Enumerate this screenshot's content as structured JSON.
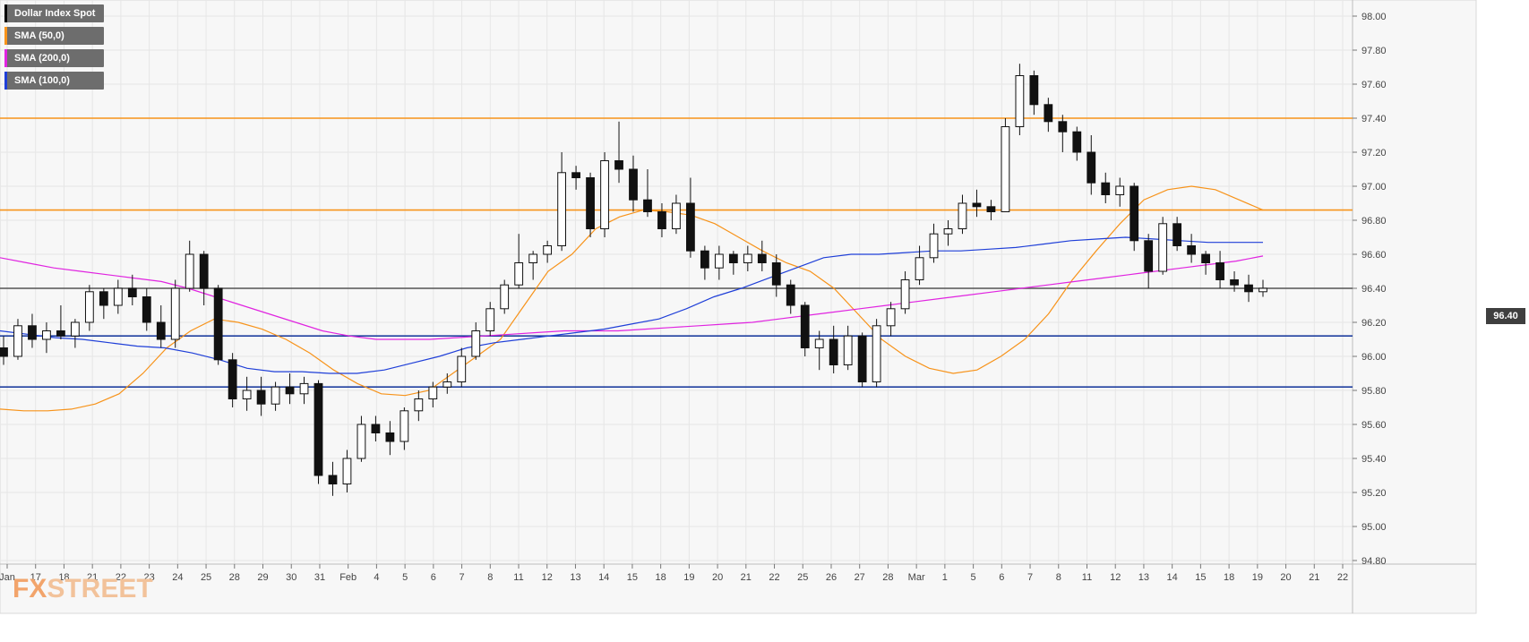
{
  "chart_data": {
    "type": "candlestick",
    "title": "Dollar Index Spot",
    "instrument": "Dollar Index Spot",
    "last_price_label": "96.40",
    "yaxis": {
      "min": 94.8,
      "max": 98.0,
      "ticks": [
        "98.00",
        "97.80",
        "97.60",
        "97.40",
        "97.20",
        "97.00",
        "96.80",
        "96.60",
        "96.40",
        "96.20",
        "96.00",
        "95.80",
        "95.60",
        "95.40",
        "95.20",
        "95.00",
        "94.80"
      ]
    },
    "xaxis": {
      "ticks": [
        "Jan",
        "17",
        "18",
        "21",
        "22",
        "23",
        "24",
        "25",
        "28",
        "29",
        "30",
        "31",
        "Feb",
        "4",
        "5",
        "6",
        "7",
        "8",
        "11",
        "12",
        "13",
        "14",
        "15",
        "18",
        "19",
        "20",
        "21",
        "22",
        "25",
        "26",
        "27",
        "28",
        "Mar",
        "1",
        "5",
        "6",
        "7",
        "8",
        "11",
        "12",
        "13",
        "14",
        "15",
        "18",
        "19",
        "20",
        "21",
        "22"
      ]
    },
    "legend": [
      {
        "label": "Dollar Index Spot",
        "color": "#000000"
      },
      {
        "label": "SMA (50,0)",
        "color": "#f7931a"
      },
      {
        "label": "SMA (200,0)",
        "color": "#e024e0"
      },
      {
        "label": "SMA (100,0)",
        "color": "#1f3fd8"
      }
    ],
    "horizontal_levels": [
      {
        "value": 97.4,
        "color": "#f7931a"
      },
      {
        "value": 96.86,
        "color": "#f7931a"
      },
      {
        "value": 96.4,
        "color": "#555555"
      },
      {
        "value": 96.12,
        "color": "#1f3f9f"
      },
      {
        "value": 95.82,
        "color": "#1f3f9f"
      }
    ],
    "series": [
      {
        "name": "SMA (50,0)",
        "color": "#f7931a",
        "values": [
          95.69,
          95.68,
          95.68,
          95.69,
          95.72,
          95.78,
          95.9,
          96.05,
          96.15,
          96.22,
          96.2,
          96.16,
          96.1,
          96.02,
          95.92,
          95.84,
          95.78,
          95.77,
          95.8,
          95.9,
          96.0,
          96.1,
          96.3,
          96.5,
          96.6,
          96.75,
          96.82,
          96.86,
          96.85,
          96.83,
          96.78,
          96.7,
          96.62,
          96.55,
          96.5,
          96.4,
          96.25,
          96.1,
          96.0,
          95.93,
          95.9,
          95.92,
          96.0,
          96.1,
          96.25,
          96.45,
          96.62,
          96.78,
          96.92,
          96.98,
          97.0,
          96.98,
          96.92,
          96.86
        ]
      },
      {
        "name": "SMA (200,0)",
        "color": "#e024e0",
        "values": [
          96.58,
          96.55,
          96.52,
          96.5,
          96.48,
          96.46,
          96.44,
          96.4,
          96.35,
          96.3,
          96.25,
          96.2,
          96.15,
          96.12,
          96.1,
          96.1,
          96.1,
          96.11,
          96.12,
          96.13,
          96.14,
          96.15,
          96.15,
          96.15,
          96.16,
          96.17,
          96.18,
          96.19,
          96.2,
          96.22,
          96.24,
          96.26,
          96.28,
          96.3,
          96.32,
          96.34,
          96.36,
          96.38,
          96.4,
          96.42,
          96.44,
          96.46,
          96.48,
          96.5,
          96.52,
          96.54,
          96.56,
          96.59
        ]
      },
      {
        "name": "SMA (100,0)",
        "color": "#1f3fd8",
        "values": [
          96.15,
          96.13,
          96.11,
          96.1,
          96.08,
          96.06,
          96.05,
          96.02,
          95.98,
          95.93,
          95.91,
          95.91,
          95.9,
          95.9,
          95.92,
          95.96,
          96.0,
          96.05,
          96.08,
          96.1,
          96.12,
          96.14,
          96.16,
          96.19,
          96.22,
          96.28,
          96.35,
          96.4,
          96.46,
          96.52,
          96.58,
          96.6,
          96.6,
          96.61,
          96.62,
          96.62,
          96.63,
          96.64,
          96.66,
          96.68,
          96.69,
          96.7,
          96.69,
          96.68,
          96.67,
          96.67,
          96.67
        ]
      },
      {
        "name": "Dollar Index Spot",
        "color": "#000000",
        "candles": [
          [
            96.05,
            96.12,
            95.95,
            96.0
          ],
          [
            96.0,
            96.22,
            95.98,
            96.18
          ],
          [
            96.18,
            96.25,
            96.05,
            96.1
          ],
          [
            96.1,
            96.2,
            96.02,
            96.15
          ],
          [
            96.15,
            96.3,
            96.1,
            96.12
          ],
          [
            96.12,
            96.22,
            96.05,
            96.2
          ],
          [
            96.2,
            96.42,
            96.15,
            96.38
          ],
          [
            96.38,
            96.4,
            96.22,
            96.3
          ],
          [
            96.3,
            96.45,
            96.25,
            96.4
          ],
          [
            96.4,
            96.48,
            96.3,
            96.35
          ],
          [
            96.35,
            96.4,
            96.15,
            96.2
          ],
          [
            96.2,
            96.3,
            96.05,
            96.1
          ],
          [
            96.1,
            96.45,
            96.05,
            96.4
          ],
          [
            96.4,
            96.68,
            96.38,
            96.6
          ],
          [
            96.6,
            96.62,
            96.3,
            96.4
          ],
          [
            96.4,
            96.42,
            95.95,
            95.98
          ],
          [
            95.98,
            96.02,
            95.7,
            95.75
          ],
          [
            95.75,
            95.88,
            95.68,
            95.8
          ],
          [
            95.8,
            95.88,
            95.65,
            95.72
          ],
          [
            95.72,
            95.85,
            95.68,
            95.82
          ],
          [
            95.82,
            95.9,
            95.72,
            95.78
          ],
          [
            95.78,
            95.88,
            95.72,
            95.84
          ],
          [
            95.84,
            95.86,
            95.25,
            95.3
          ],
          [
            95.3,
            95.38,
            95.18,
            95.25
          ],
          [
            95.25,
            95.45,
            95.2,
            95.4
          ],
          [
            95.4,
            95.65,
            95.38,
            95.6
          ],
          [
            95.6,
            95.65,
            95.5,
            95.55
          ],
          [
            95.55,
            95.62,
            95.42,
            95.5
          ],
          [
            95.5,
            95.7,
            95.45,
            95.68
          ],
          [
            95.68,
            95.8,
            95.62,
            95.75
          ],
          [
            95.75,
            95.85,
            95.7,
            95.82
          ],
          [
            95.82,
            95.9,
            95.78,
            95.85
          ],
          [
            95.85,
            96.05,
            95.82,
            96.0
          ],
          [
            96.0,
            96.2,
            95.98,
            96.15
          ],
          [
            96.15,
            96.32,
            96.12,
            96.28
          ],
          [
            96.28,
            96.45,
            96.25,
            96.42
          ],
          [
            96.42,
            96.72,
            96.4,
            96.55
          ],
          [
            96.55,
            96.62,
            96.45,
            96.6
          ],
          [
            96.6,
            96.68,
            96.55,
            96.65
          ],
          [
            96.65,
            97.2,
            96.62,
            97.08
          ],
          [
            97.08,
            97.12,
            96.98,
            97.05
          ],
          [
            97.05,
            97.08,
            96.7,
            96.75
          ],
          [
            96.75,
            97.2,
            96.7,
            97.15
          ],
          [
            97.15,
            97.38,
            97.02,
            97.1
          ],
          [
            97.1,
            97.18,
            96.85,
            96.92
          ],
          [
            96.92,
            97.1,
            96.82,
            96.85
          ],
          [
            96.85,
            96.9,
            96.7,
            96.75
          ],
          [
            96.75,
            96.95,
            96.72,
            96.9
          ],
          [
            96.9,
            97.05,
            96.58,
            96.62
          ],
          [
            96.62,
            96.65,
            96.45,
            96.52
          ],
          [
            96.52,
            96.65,
            96.45,
            96.6
          ],
          [
            96.6,
            96.62,
            96.48,
            96.55
          ],
          [
            96.55,
            96.65,
            96.5,
            96.6
          ],
          [
            96.6,
            96.68,
            96.5,
            96.55
          ],
          [
            96.55,
            96.6,
            96.35,
            96.42
          ],
          [
            96.42,
            96.45,
            96.25,
            96.3
          ],
          [
            96.3,
            96.32,
            96.0,
            96.05
          ],
          [
            96.05,
            96.15,
            95.92,
            96.1
          ],
          [
            96.1,
            96.18,
            95.9,
            95.95
          ],
          [
            95.95,
            96.18,
            95.92,
            96.12
          ],
          [
            96.12,
            96.14,
            95.82,
            95.85
          ],
          [
            95.85,
            96.22,
            95.82,
            96.18
          ],
          [
            96.18,
            96.32,
            96.12,
            96.28
          ],
          [
            96.28,
            96.5,
            96.25,
            96.45
          ],
          [
            96.45,
            96.65,
            96.42,
            96.58
          ],
          [
            96.58,
            96.78,
            96.55,
            96.72
          ],
          [
            96.72,
            96.8,
            96.65,
            96.75
          ],
          [
            96.75,
            96.95,
            96.72,
            96.9
          ],
          [
            96.9,
            96.98,
            96.82,
            96.88
          ],
          [
            96.88,
            96.92,
            96.8,
            96.85
          ],
          [
            96.85,
            97.4,
            96.85,
            97.35
          ],
          [
            97.35,
            97.72,
            97.3,
            97.65
          ],
          [
            97.65,
            97.68,
            97.42,
            97.48
          ],
          [
            97.48,
            97.52,
            97.32,
            97.38
          ],
          [
            97.38,
            97.42,
            97.2,
            97.32
          ],
          [
            97.32,
            97.35,
            97.15,
            97.2
          ],
          [
            97.2,
            97.3,
            96.95,
            97.02
          ],
          [
            97.02,
            97.08,
            96.9,
            96.95
          ],
          [
            96.95,
            97.05,
            96.88,
            97.0
          ],
          [
            97.0,
            97.02,
            96.62,
            96.68
          ],
          [
            96.68,
            96.72,
            96.4,
            96.5
          ],
          [
            96.5,
            96.82,
            96.48,
            96.78
          ],
          [
            96.78,
            96.82,
            96.62,
            96.65
          ],
          [
            96.65,
            96.72,
            96.55,
            96.6
          ],
          [
            96.6,
            96.62,
            96.48,
            96.55
          ],
          [
            96.55,
            96.62,
            96.4,
            96.45
          ],
          [
            96.45,
            96.5,
            96.38,
            96.42
          ],
          [
            96.42,
            96.48,
            96.32,
            96.38
          ],
          [
            96.38,
            96.45,
            96.35,
            96.4
          ]
        ]
      }
    ]
  },
  "branding": {
    "logo_fx": "FX",
    "logo_rest": "STREET"
  }
}
